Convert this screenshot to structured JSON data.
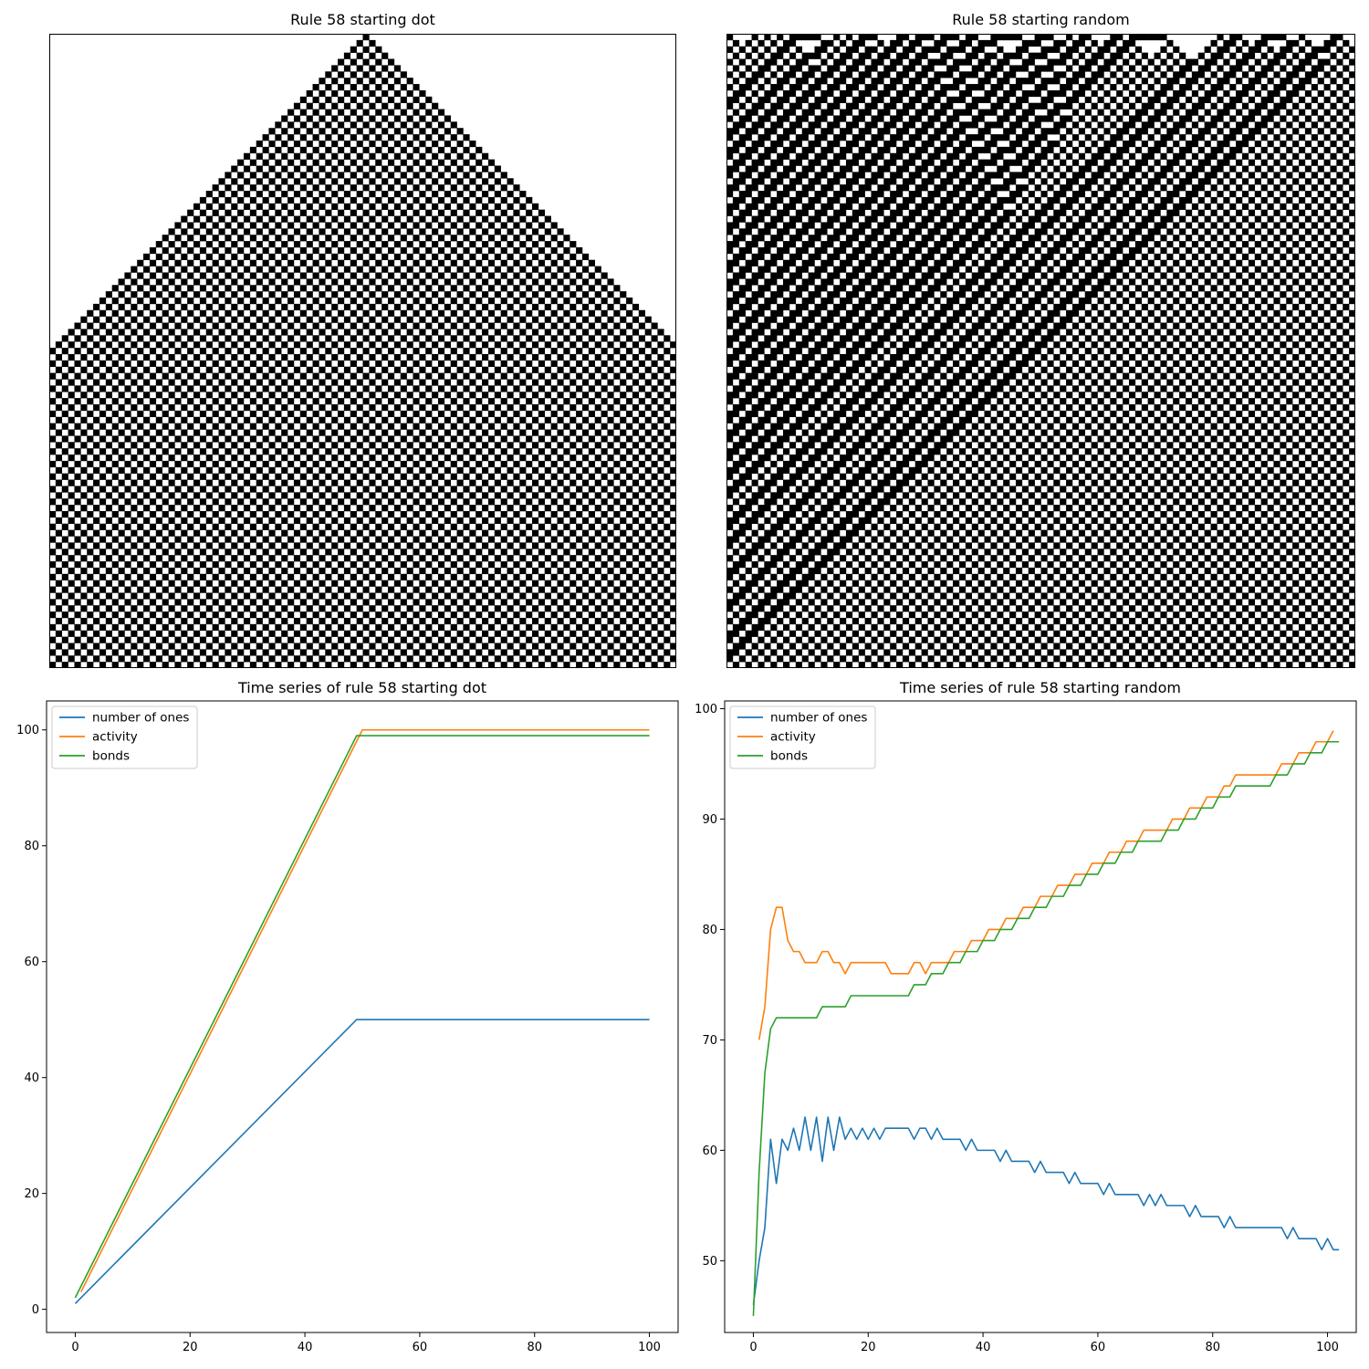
{
  "chart_data": [
    {
      "type": "heatmap",
      "title": "Rule 58 starting dot",
      "grid_width": 100,
      "grid_height": 101,
      "initial_state": "dot",
      "rule": 58,
      "colors": {
        "one": "#000000",
        "zero": "#ffffff"
      }
    },
    {
      "type": "heatmap",
      "title": "Rule 58 starting random",
      "grid_width": 100,
      "grid_height": 101,
      "initial_state": "random",
      "rule": 58,
      "colors": {
        "one": "#000000",
        "zero": "#ffffff"
      }
    },
    {
      "type": "line",
      "title": "Time series of rule 58 starting dot",
      "xlim": [
        -5,
        105
      ],
      "ylim": [
        -4,
        105
      ],
      "xticks": [
        0,
        20,
        40,
        60,
        80,
        100
      ],
      "yticks": [
        0,
        20,
        40,
        60,
        80,
        100
      ],
      "legend": "top-left",
      "series": [
        {
          "name": "number of ones",
          "color": "#1f77b4",
          "points": [
            [
              0,
              1
            ],
            [
              49,
              50
            ],
            [
              100,
              50
            ]
          ]
        },
        {
          "name": "activity",
          "color": "#ff7f0e",
          "points": [
            [
              1,
              3
            ],
            [
              50,
              100
            ],
            [
              100,
              100
            ]
          ]
        },
        {
          "name": "bonds",
          "color": "#2ca02c",
          "points": [
            [
              0,
              2
            ],
            [
              49,
              99
            ],
            [
              100,
              99
            ]
          ]
        }
      ]
    },
    {
      "type": "line",
      "title": "Time series of rule 58 starting random",
      "xlim": [
        -5,
        105
      ],
      "ylim": [
        43.5,
        100.7
      ],
      "xticks": [
        0,
        20,
        40,
        60,
        80,
        100
      ],
      "yticks": [
        50,
        60,
        70,
        80,
        90,
        100
      ],
      "legend": "top-left",
      "series": [
        {
          "name": "number of ones",
          "color": "#1f77b4",
          "values": [
            46,
            50,
            53,
            61,
            57,
            61,
            60,
            62,
            60,
            63,
            60,
            63,
            59,
            63,
            60,
            63,
            61,
            62,
            61,
            62,
            61,
            62,
            61,
            62,
            62,
            62,
            62,
            62,
            61,
            62,
            62,
            61,
            62,
            61,
            61,
            61,
            61,
            60,
            61,
            60,
            60,
            60,
            60,
            59,
            60,
            59,
            59,
            59,
            59,
            58,
            59,
            58,
            58,
            58,
            58,
            57,
            58,
            57,
            57,
            57,
            57,
            56,
            57,
            56,
            56,
            56,
            56,
            56,
            55,
            56,
            55,
            56,
            55,
            55,
            55,
            55,
            54,
            55,
            54,
            54,
            54,
            54,
            53,
            54,
            53,
            53,
            53,
            53,
            53,
            53,
            53,
            53,
            53,
            52,
            53,
            52,
            52,
            52,
            52,
            51,
            52,
            51,
            51
          ]
        },
        {
          "name": "activity",
          "color": "#ff7f0e",
          "x_start": 1,
          "values": [
            70,
            73,
            80,
            82,
            82,
            79,
            78,
            78,
            77,
            77,
            77,
            78,
            78,
            77,
            77,
            76,
            77,
            77,
            77,
            77,
            77,
            77,
            77,
            76,
            76,
            76,
            76,
            77,
            77,
            76,
            77,
            77,
            77,
            77,
            78,
            78,
            78,
            79,
            79,
            79,
            80,
            80,
            80,
            81,
            81,
            81,
            82,
            82,
            82,
            83,
            83,
            83,
            84,
            84,
            84,
            85,
            85,
            85,
            86,
            86,
            86,
            87,
            87,
            87,
            88,
            88,
            88,
            89,
            89,
            89,
            89,
            89,
            90,
            90,
            90,
            91,
            91,
            91,
            92,
            92,
            92,
            93,
            93,
            94,
            94,
            94,
            94,
            94,
            94,
            94,
            94,
            95,
            95,
            95,
            96,
            96,
            96,
            97,
            97,
            97,
            98
          ]
        },
        {
          "name": "bonds",
          "color": "#2ca02c",
          "values": [
            45,
            58,
            67,
            71,
            72,
            72,
            72,
            72,
            72,
            72,
            72,
            72,
            73,
            73,
            73,
            73,
            73,
            74,
            74,
            74,
            74,
            74,
            74,
            74,
            74,
            74,
            74,
            74,
            75,
            75,
            75,
            76,
            76,
            76,
            77,
            77,
            77,
            78,
            78,
            78,
            79,
            79,
            79,
            80,
            80,
            80,
            81,
            81,
            81,
            82,
            82,
            82,
            83,
            83,
            83,
            84,
            84,
            84,
            85,
            85,
            85,
            86,
            86,
            86,
            87,
            87,
            87,
            88,
            88,
            88,
            88,
            88,
            89,
            89,
            89,
            90,
            90,
            90,
            91,
            91,
            91,
            92,
            92,
            92,
            93,
            93,
            93,
            93,
            93,
            93,
            93,
            94,
            94,
            94,
            95,
            95,
            95,
            96,
            96,
            96,
            97,
            97,
            97
          ]
        }
      ]
    }
  ]
}
